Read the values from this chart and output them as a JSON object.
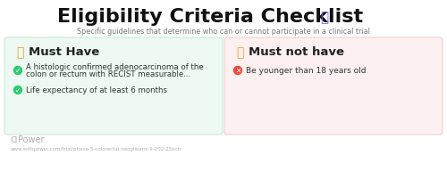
{
  "title": "Eligibility Criteria Checklist",
  "title_emoji": "📋",
  "subtitle": "Specific guidelines that determine who can or cannot participate in a clinical trial",
  "bg_color": "#ffffff",
  "left_panel": {
    "bg_color": "#edf9f2",
    "border_color": "#c8ecd8",
    "header_text": "Must Have",
    "header_icon": "👍",
    "header_icon_color": "#e8a020",
    "items": [
      {
        "line1": "A histologic confirmed adenocarcinoma of the",
        "line2": "colon or rectum with RECIST measurable...",
        "icon_color": "#2ecc71"
      },
      {
        "line1": "Life expectancy of at least 6 months",
        "line2": "",
        "icon_color": "#2ecc71"
      }
    ]
  },
  "right_panel": {
    "bg_color": "#fdf0f0",
    "border_color": "#f0d0d0",
    "header_text": "Must not have",
    "header_icon": "👎",
    "header_icon_color": "#e8a020",
    "items": [
      {
        "line1": "Be younger than 18 years old",
        "line2": "",
        "icon_color": "#e74c3c"
      }
    ]
  },
  "footer_logo_icon": "P",
  "footer_logo_text": " Power",
  "footer_url": "www.withpower.com/trial/phase-5-colorectal-neoplasms-9-202-25bch",
  "footer_color": "#b0b0b0"
}
